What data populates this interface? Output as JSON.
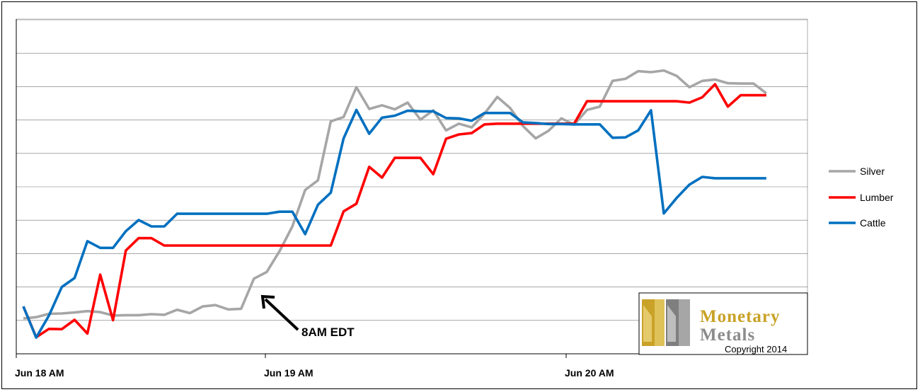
{
  "chart_data": {
    "type": "line",
    "title": "",
    "xlabel": "",
    "ylabel": "",
    "grid": true,
    "legend_position": "right",
    "x_ticks": [
      "Jun 18 AM",
      "Jun 19 AM",
      "Jun 20 AM"
    ],
    "annotation": "8AM EDT",
    "series": [
      {
        "name": "Silver",
        "color": "#a6a6a6",
        "values": [
          0.04,
          0.08,
          0.18,
          0.19,
          0.22,
          0.26,
          0.23,
          0.13,
          0.14,
          0.14,
          0.17,
          0.15,
          0.3,
          0.2,
          0.4,
          0.44,
          0.31,
          0.33,
          1.23,
          1.43,
          2.05,
          2.79,
          3.88,
          4.17,
          5.93,
          6.06,
          6.95,
          6.3,
          6.41,
          6.29,
          6.49,
          5.98,
          6.26,
          5.66,
          5.86,
          5.75,
          6.16,
          6.66,
          6.33,
          5.79,
          5.42,
          5.65,
          6.02,
          5.83,
          6.27,
          6.37,
          7.14,
          7.2,
          7.43,
          7.4,
          7.45,
          7.29,
          6.95,
          7.14,
          7.18,
          7.07,
          7.06,
          7.06,
          6.77
        ]
      },
      {
        "name": "Lumber",
        "color": "#ff0000",
        "values": [
          0.4,
          -0.52,
          -0.27,
          -0.28,
          0.0,
          -0.41,
          1.35,
          -0.01,
          2.07,
          2.44,
          2.44,
          2.22,
          2.22,
          2.22,
          2.22,
          2.22,
          2.22,
          2.22,
          2.22,
          2.22,
          2.22,
          2.22,
          2.22,
          2.22,
          2.22,
          3.24,
          3.47,
          4.57,
          4.25,
          4.84,
          4.84,
          4.84,
          4.35,
          5.41,
          5.54,
          5.58,
          5.84,
          5.86,
          5.86,
          5.86,
          5.86,
          5.86,
          5.86,
          5.86,
          6.53,
          6.53,
          6.53,
          6.53,
          6.53,
          6.53,
          6.53,
          6.53,
          6.49,
          6.65,
          7.04,
          6.37,
          6.71,
          6.71,
          6.71
        ]
      },
      {
        "name": "Cattle",
        "color": "#0070c0",
        "values": [
          0.4,
          -0.53,
          0.13,
          0.98,
          1.25,
          2.35,
          2.15,
          2.15,
          2.65,
          2.98,
          2.79,
          2.79,
          3.17,
          3.17,
          3.17,
          3.17,
          3.17,
          3.17,
          3.17,
          3.17,
          3.23,
          3.23,
          2.56,
          3.44,
          3.8,
          5.42,
          6.27,
          5.56,
          6.04,
          6.1,
          6.25,
          6.23,
          6.23,
          6.03,
          6.02,
          5.95,
          6.18,
          6.18,
          6.18,
          5.9,
          5.88,
          5.85,
          5.85,
          5.84,
          5.84,
          5.84,
          5.44,
          5.45,
          5.66,
          6.26,
          3.18,
          3.64,
          4.04,
          4.27,
          4.23,
          4.23,
          4.23,
          4.23,
          4.23
        ]
      }
    ]
  },
  "logo": {
    "line1": "Monetary",
    "line2": "Metals",
    "copyright": "Copyright 2014",
    "gold_color": "#c9a227",
    "gray_color": "#8c8c8c"
  }
}
